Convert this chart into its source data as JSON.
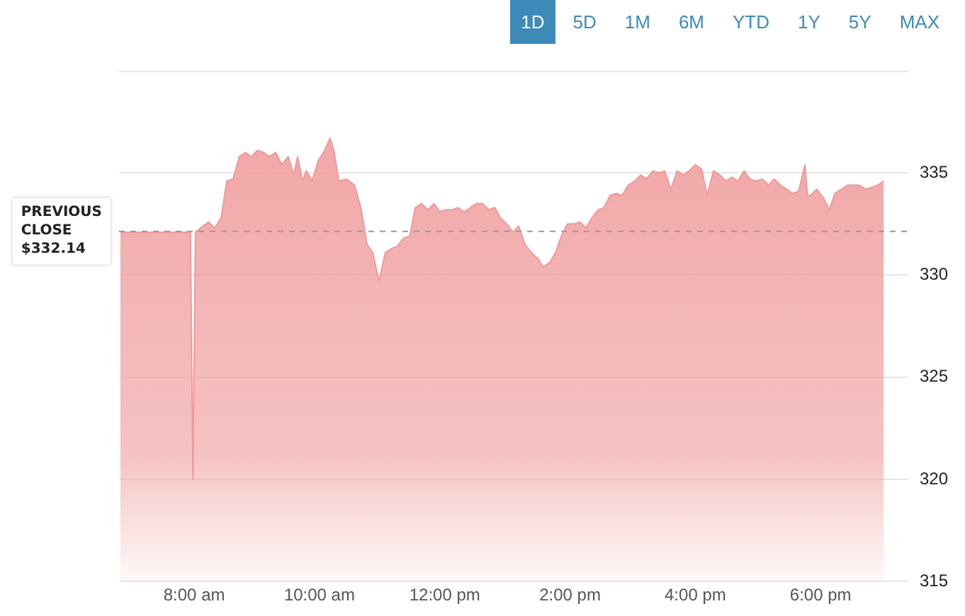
{
  "chart_data": {
    "type": "area",
    "annotations": [
      "1D",
      "5D",
      "1M",
      "6M",
      "YTD",
      "1Y",
      "5Y",
      "MAX"
    ],
    "series": [
      {
        "color": "#ef9a9a",
        "x": [
          6.82,
          7.94,
          7.98,
          8.02,
          8.14,
          8.23,
          8.33,
          8.43,
          8.52,
          8.62,
          8.72,
          8.82,
          8.91,
          9.01,
          9.11,
          9.2,
          9.3,
          9.4,
          9.5,
          9.59,
          9.65,
          9.73,
          9.79,
          9.88,
          9.98,
          10.08,
          10.17,
          10.23,
          10.31,
          10.43,
          10.56,
          10.66,
          10.76,
          10.85,
          10.95,
          11.05,
          11.15,
          11.24,
          11.34,
          11.44,
          11.53,
          11.63,
          11.73,
          11.83,
          11.92,
          12.02,
          12.12,
          12.21,
          12.31,
          12.41,
          12.5,
          12.6,
          12.7,
          12.8,
          12.89,
          12.99,
          13.09,
          13.18,
          13.28,
          13.38,
          13.49,
          13.57,
          13.67,
          13.77,
          13.86,
          13.96,
          14.06,
          14.16,
          14.25,
          14.35,
          14.45,
          14.54,
          14.64,
          14.74,
          14.83,
          14.93,
          15.03,
          15.13,
          15.22,
          15.32,
          15.42,
          15.51,
          15.61,
          15.71,
          15.81,
          15.9,
          16.0,
          16.1,
          16.19,
          16.29,
          16.39,
          16.49,
          16.58,
          16.68,
          16.78,
          16.87,
          16.97,
          17.07,
          17.17,
          17.26,
          17.36,
          17.46,
          17.55,
          17.65,
          17.75,
          17.79,
          17.84,
          17.94,
          18.04,
          18.14,
          18.23,
          18.33,
          18.43,
          18.52,
          18.62,
          18.72,
          18.82,
          18.91,
          19.01
        ],
        "values": [
          332.1,
          332.1,
          320.0,
          332.1,
          332.4,
          332.6,
          332.3,
          332.8,
          334.6,
          334.7,
          335.8,
          336.0,
          335.8,
          336.1,
          336.0,
          335.8,
          336.0,
          335.4,
          335.8,
          334.9,
          335.8,
          334.6,
          335.1,
          334.6,
          335.6,
          336.1,
          336.7,
          336.1,
          334.6,
          334.7,
          334.4,
          333.3,
          331.5,
          331.1,
          329.7,
          331.1,
          331.3,
          331.4,
          331.8,
          331.9,
          333.3,
          333.5,
          333.2,
          333.5,
          333.1,
          333.2,
          333.2,
          333.3,
          333.1,
          333.3,
          333.5,
          333.5,
          333.2,
          333.3,
          332.8,
          332.5,
          332.1,
          332.4,
          331.5,
          331.1,
          330.8,
          330.4,
          330.6,
          331.1,
          331.9,
          332.5,
          332.5,
          332.6,
          332.3,
          332.8,
          333.2,
          333.3,
          333.9,
          334.0,
          333.9,
          334.4,
          334.6,
          334.9,
          334.7,
          335.1,
          335.0,
          335.1,
          334.2,
          335.1,
          334.9,
          335.1,
          335.4,
          335.2,
          333.9,
          335.1,
          334.9,
          334.6,
          334.8,
          334.6,
          335.1,
          334.7,
          334.6,
          334.7,
          334.4,
          334.7,
          334.4,
          334.2,
          334.0,
          334.1,
          335.4,
          333.9,
          333.9,
          334.2,
          333.8,
          333.2,
          334.0,
          334.2,
          334.4,
          334.4,
          334.4,
          334.2,
          334.3,
          334.4,
          334.6
        ]
      }
    ],
    "xlim": [
      6.8,
      19.4
    ],
    "xticks": [
      {
        "value": 8,
        "label": "8:00 am"
      },
      {
        "value": 10,
        "label": "10:00 am"
      },
      {
        "value": 12,
        "label": "12:00 pm"
      },
      {
        "value": 14,
        "label": "2:00 pm"
      },
      {
        "value": 16,
        "label": "4:00 pm"
      },
      {
        "value": 18,
        "label": "6:00 pm"
      }
    ],
    "ylim": [
      315,
      340
    ],
    "yticks": [
      315,
      320,
      325,
      330,
      335
    ],
    "ref_lines": [
      {
        "axis": "y",
        "value": 332.14,
        "label": "PREVIOUS CLOSE $332.14",
        "line_style": "dashed"
      }
    ],
    "grid": "y",
    "legend": false,
    "marker": "none"
  }
}
